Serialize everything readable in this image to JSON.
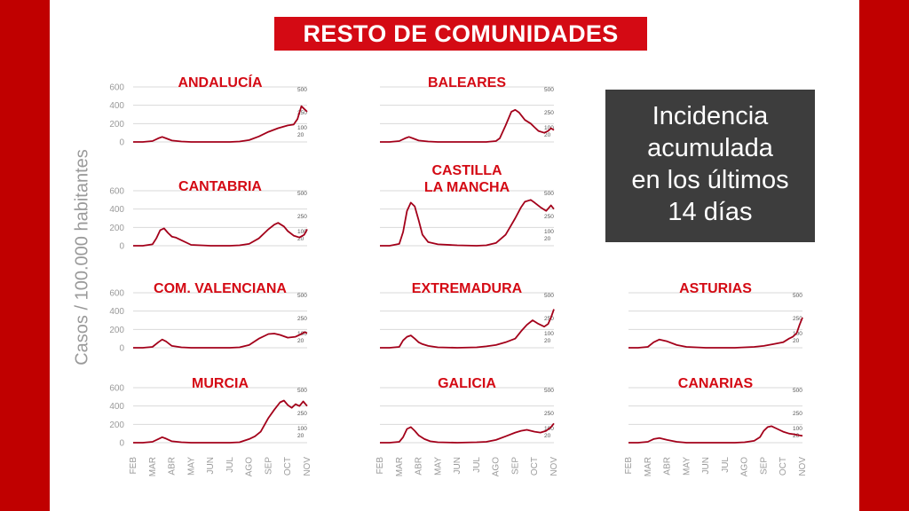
{
  "header": {
    "title": "RESTO DE COMUNIDADES"
  },
  "info": {
    "lines": [
      "Incidencia",
      "acumulada",
      "en los últimos",
      "14 días"
    ]
  },
  "axis": {
    "ylabel": "Casos / 100.000 habitantes"
  },
  "colors": {
    "line": "#a3001a",
    "title_red": "#d40a14",
    "grid": "#d9d9d9",
    "axis_text": "#9a9a9a",
    "side_bar": "#c00000",
    "info_bg": "#3d3d3d"
  },
  "chart_data": {
    "type": "line",
    "x_labels": [
      "FEB",
      "MAR",
      "ABR",
      "MAY",
      "JUN",
      "JUL",
      "AGO",
      "SEP",
      "OCT",
      "NOV"
    ],
    "left_ticks": [
      "600",
      "400",
      "200",
      "0"
    ],
    "ylim_left": [
      0,
      600
    ],
    "right_ticks": [
      "500",
      "250",
      "100",
      "20"
    ],
    "grid": true,
    "panels": [
      {
        "name": "ANDALUCÍA",
        "col": 0,
        "row": 0,
        "show_left_axis": true,
        "x": [
          1,
          1.5,
          2,
          2.3,
          2.5,
          2.7,
          3,
          3.5,
          4,
          5,
          6,
          6.5,
          7,
          7.5,
          8,
          8.5,
          9,
          9.3,
          9.5,
          9.7,
          9.85,
          10
        ],
        "y": [
          0,
          0,
          10,
          40,
          55,
          40,
          15,
          5,
          0,
          0,
          0,
          5,
          20,
          60,
          110,
          150,
          180,
          190,
          250,
          390,
          360,
          330
        ]
      },
      {
        "name": "BALEARES",
        "col": 1,
        "row": 0,
        "show_left_axis": false,
        "x": [
          1,
          1.5,
          2,
          2.3,
          2.5,
          2.7,
          3,
          3.5,
          4,
          5,
          6,
          6.5,
          7,
          7.2,
          7.5,
          7.8,
          8,
          8.2,
          8.5,
          8.8,
          9,
          9.2,
          9.5,
          9.7,
          9.85,
          10
        ],
        "y": [
          0,
          0,
          10,
          40,
          55,
          40,
          15,
          5,
          0,
          0,
          0,
          0,
          10,
          40,
          180,
          330,
          350,
          320,
          240,
          200,
          160,
          120,
          100,
          120,
          150,
          130
        ]
      },
      {
        "name": "CANTABRIA",
        "col": 0,
        "row": 1,
        "show_left_axis": true,
        "x": [
          1,
          1.5,
          2,
          2.2,
          2.4,
          2.6,
          2.8,
          3,
          3.2,
          3.5,
          4,
          5,
          6,
          6.5,
          7,
          7.5,
          8,
          8.3,
          8.5,
          8.8,
          9,
          9.3,
          9.6,
          9.85,
          10
        ],
        "y": [
          0,
          0,
          15,
          80,
          170,
          190,
          140,
          100,
          90,
          60,
          10,
          0,
          0,
          5,
          20,
          80,
          180,
          230,
          250,
          210,
          160,
          110,
          90,
          120,
          180
        ]
      },
      {
        "name": "CASTILLA\nLA MANCHA",
        "col": 1,
        "row": 1,
        "show_left_axis": false,
        "x": [
          1,
          1.5,
          2,
          2.2,
          2.4,
          2.6,
          2.8,
          3,
          3.2,
          3.5,
          4,
          5,
          6,
          6.5,
          7,
          7.5,
          8,
          8.3,
          8.5,
          8.8,
          9,
          9.3,
          9.6,
          9.85,
          10
        ],
        "y": [
          0,
          0,
          20,
          150,
          380,
          470,
          430,
          280,
          120,
          40,
          15,
          5,
          0,
          5,
          30,
          120,
          300,
          420,
          480,
          500,
          470,
          420,
          380,
          440,
          400
        ]
      },
      {
        "name": "COM. VALENCIANA",
        "col": 0,
        "row": 2,
        "show_left_axis": true,
        "x": [
          1,
          1.5,
          2,
          2.3,
          2.5,
          2.7,
          3,
          3.5,
          4,
          5,
          6,
          6.5,
          7,
          7.5,
          8,
          8.3,
          8.6,
          9,
          9.4,
          9.7,
          9.85,
          10
        ],
        "y": [
          0,
          0,
          10,
          60,
          90,
          70,
          20,
          5,
          0,
          0,
          0,
          5,
          30,
          100,
          150,
          155,
          140,
          110,
          120,
          150,
          170,
          160
        ]
      },
      {
        "name": "EXTREMADURA",
        "col": 1,
        "row": 2,
        "show_left_axis": false,
        "x": [
          1,
          1.5,
          2,
          2.2,
          2.4,
          2.6,
          2.8,
          3,
          3.2,
          3.5,
          4,
          5,
          6,
          6.5,
          7,
          7.5,
          8,
          8.3,
          8.6,
          8.9,
          9.2,
          9.5,
          9.7,
          9.85,
          10
        ],
        "y": [
          0,
          0,
          10,
          80,
          120,
          135,
          100,
          60,
          40,
          20,
          5,
          0,
          5,
          15,
          30,
          60,
          100,
          180,
          250,
          300,
          260,
          230,
          260,
          330,
          420
        ]
      },
      {
        "name": "ASTURIAS",
        "col": 2,
        "row": 2,
        "show_left_axis": false,
        "x": [
          1,
          1.5,
          2,
          2.3,
          2.6,
          3,
          3.5,
          4,
          5,
          6,
          6.5,
          7,
          7.5,
          8,
          8.5,
          9,
          9.3,
          9.5,
          9.7,
          9.85,
          10
        ],
        "y": [
          0,
          0,
          10,
          60,
          90,
          70,
          30,
          10,
          0,
          0,
          0,
          5,
          10,
          20,
          40,
          60,
          100,
          120,
          160,
          250,
          330
        ]
      },
      {
        "name": "MURCIA",
        "col": 0,
        "row": 3,
        "show_left_axis": true,
        "x": [
          1,
          1.5,
          2,
          2.3,
          2.5,
          2.7,
          3,
          3.5,
          4,
          5,
          6,
          6.5,
          7,
          7.3,
          7.6,
          8,
          8.3,
          8.6,
          8.8,
          9,
          9.2,
          9.4,
          9.6,
          9.8,
          10
        ],
        "y": [
          0,
          0,
          10,
          40,
          60,
          45,
          15,
          5,
          0,
          0,
          0,
          5,
          40,
          70,
          120,
          270,
          360,
          440,
          460,
          410,
          380,
          420,
          400,
          450,
          400
        ]
      },
      {
        "name": "GALICIA",
        "col": 1,
        "row": 3,
        "show_left_axis": false,
        "x": [
          1,
          1.5,
          2,
          2.2,
          2.4,
          2.6,
          2.8,
          3,
          3.3,
          3.6,
          4,
          5,
          6,
          6.5,
          7,
          7.5,
          8,
          8.3,
          8.6,
          9,
          9.3,
          9.6,
          9.85,
          10
        ],
        "y": [
          0,
          0,
          10,
          60,
          150,
          170,
          130,
          80,
          40,
          15,
          5,
          0,
          5,
          10,
          30,
          70,
          110,
          130,
          140,
          120,
          110,
          130,
          170,
          210
        ]
      },
      {
        "name": "CANARIAS",
        "col": 2,
        "row": 3,
        "show_left_axis": false,
        "x": [
          1,
          1.5,
          2,
          2.3,
          2.6,
          3,
          3.5,
          4,
          5,
          6,
          6.5,
          7,
          7.5,
          7.8,
          8,
          8.2,
          8.4,
          8.7,
          9,
          9.3,
          9.6,
          9.85,
          10
        ],
        "y": [
          0,
          0,
          10,
          40,
          50,
          30,
          10,
          0,
          0,
          0,
          0,
          5,
          20,
          60,
          130,
          170,
          180,
          150,
          120,
          100,
          90,
          80,
          75
        ]
      }
    ]
  }
}
